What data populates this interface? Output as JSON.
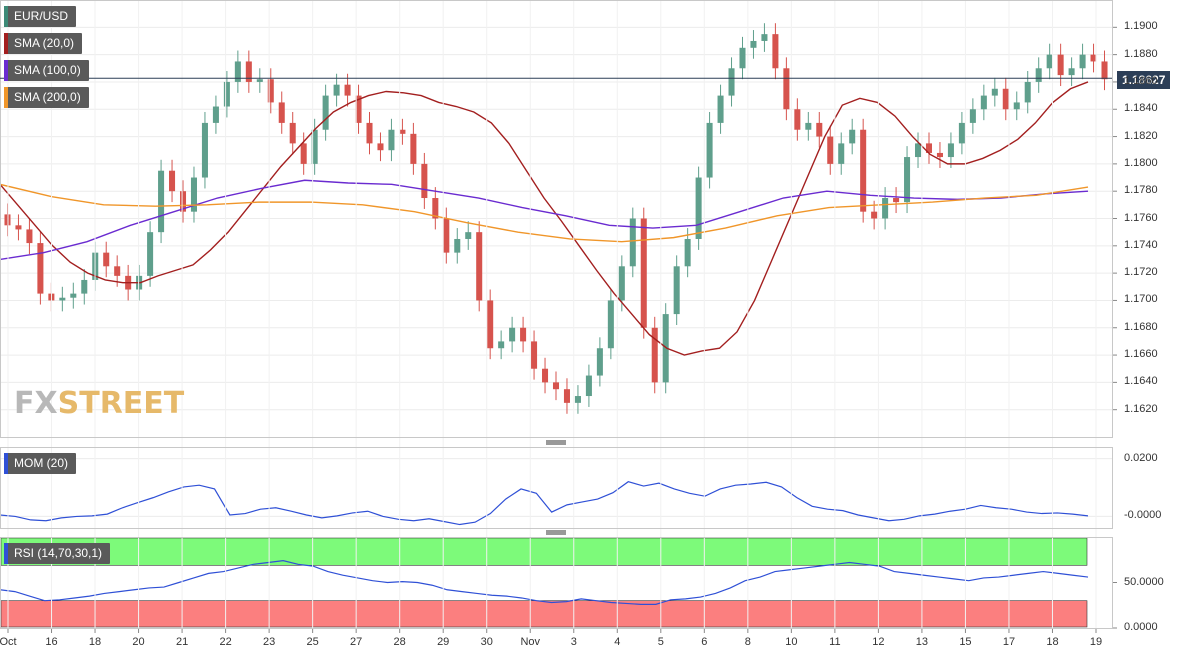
{
  "colors": {
    "up": "#5f9f8c",
    "down": "#d6534d",
    "sma20": "#a31f1f",
    "sma100": "#6a2bd0",
    "sma200": "#f0962a",
    "mom": "#2f50d6",
    "rsi": "#2f50d6"
  },
  "legend": {
    "symbol": "EUR/USD",
    "sma20": "SMA (20,0)",
    "sma100": "SMA (100,0)",
    "sma200": "SMA (200,0)",
    "mom": "MOM (20)",
    "rsi": "RSI (14,70,30,1)"
  },
  "last_price": "1.18627",
  "watermark": {
    "part1": "FX",
    "part2": "STREET"
  },
  "chart_data": [
    {
      "type": "candlestick",
      "title": "EUR/USD",
      "ylim": [
        1.16,
        1.192
      ],
      "y_ticks": [
        "1.1620",
        "1.1640",
        "1.1660",
        "1.1680",
        "1.1700",
        "1.1720",
        "1.1740",
        "1.1760",
        "1.1780",
        "1.1800",
        "1.1820",
        "1.1840",
        "1.1860",
        "1.1880",
        "1.1900"
      ],
      "x_ticks": [
        "Oct",
        "16",
        "18",
        "20",
        "21",
        "22",
        "23",
        "25",
        "27",
        "28",
        "29",
        "30",
        "Nov",
        "3",
        "4",
        "5",
        "6",
        "8",
        "10",
        "11",
        "12",
        "13",
        "15",
        "17",
        "18",
        "19"
      ],
      "last_value": 1.18627,
      "close": [
        1.1755,
        1.1752,
        1.1742,
        1.1705,
        1.17,
        1.1702,
        1.1705,
        1.1715,
        1.1735,
        1.1725,
        1.1718,
        1.1708,
        1.1718,
        1.175,
        1.1795,
        1.178,
        1.1765,
        1.179,
        1.183,
        1.1842,
        1.186,
        1.1875,
        1.186,
        1.1862,
        1.1845,
        1.183,
        1.1815,
        1.18,
        1.1825,
        1.185,
        1.1858,
        1.185,
        1.183,
        1.1815,
        1.181,
        1.1825,
        1.1822,
        1.18,
        1.1775,
        1.176,
        1.1735,
        1.1745,
        1.175,
        1.17,
        1.1665,
        1.167,
        1.168,
        1.167,
        1.165,
        1.164,
        1.1635,
        1.1625,
        1.163,
        1.1645,
        1.1665,
        1.17,
        1.1725,
        1.176,
        1.168,
        1.164,
        1.169,
        1.1725,
        1.1745,
        1.179,
        1.183,
        1.185,
        1.187,
        1.1885,
        1.189,
        1.1895,
        1.187,
        1.184,
        1.1825,
        1.183,
        1.182,
        1.18,
        1.1815,
        1.1825,
        1.1765,
        1.176,
        1.1775,
        1.1772,
        1.1805,
        1.1815,
        1.1808,
        1.1805,
        1.1815,
        1.183,
        1.184,
        1.185,
        1.1855,
        1.184,
        1.1845,
        1.186,
        1.187,
        1.188,
        1.1865,
        1.187,
        1.188,
        1.1875,
        1.1862
      ],
      "series": [
        {
          "name": "SMA (20,0)",
          "values": [
            1.1785,
            1.177,
            1.1755,
            1.174,
            1.1728,
            1.172,
            1.1715,
            1.1713,
            1.1713,
            1.1718,
            1.1722,
            1.1726,
            1.1737,
            1.175,
            1.1766,
            1.1782,
            1.1798,
            1.1812,
            1.1826,
            1.1838,
            1.1845,
            1.185,
            1.1853,
            1.1852,
            1.185,
            1.1845,
            1.1842,
            1.1838,
            1.183,
            1.1815,
            1.1795,
            1.1775,
            1.1758,
            1.174,
            1.1722,
            1.1705,
            1.169,
            1.1675,
            1.1665,
            1.166,
            1.1663,
            1.1665,
            1.1677,
            1.17,
            1.173,
            1.176,
            1.179,
            1.182,
            1.1843,
            1.1848,
            1.1845,
            1.1835,
            1.182,
            1.1807,
            1.18,
            1.18,
            1.1804,
            1.181,
            1.1818,
            1.183,
            1.1845,
            1.1855,
            1.186
          ]
        },
        {
          "name": "SMA (100,0)",
          "values": [
            1.173,
            1.1735,
            1.1743,
            1.1755,
            1.1765,
            1.1775,
            1.1782,
            1.1788,
            1.1786,
            1.1785,
            1.178,
            1.1775,
            1.1768,
            1.1762,
            1.1755,
            1.1753,
            1.1755,
            1.1765,
            1.1775,
            1.178,
            1.1777,
            1.1775,
            1.1774,
            1.1775,
            1.1778,
            1.178
          ]
        },
        {
          "name": "SMA (200,0)",
          "values": [
            1.1785,
            1.1776,
            1.177,
            1.1769,
            1.177,
            1.1772,
            1.1772,
            1.177,
            1.1765,
            1.1757,
            1.175,
            1.1745,
            1.1743,
            1.1746,
            1.1753,
            1.1762,
            1.1768,
            1.177,
            1.1772,
            1.1775,
            1.1777,
            1.1783
          ]
        }
      ]
    },
    {
      "type": "line",
      "title": "MOM (20)",
      "y_ticks": [
        "0.0200",
        "-0.0000"
      ],
      "ylim": [
        -0.004,
        0.024
      ],
      "series": [
        {
          "name": "MOM (20)",
          "values": [
            0.0005,
            0.0,
            -0.0012,
            -0.0015,
            -0.0005,
            0.0,
            0.0002,
            0.0008,
            0.003,
            0.0048,
            0.0065,
            0.0085,
            0.0102,
            0.0108,
            0.0095,
            0.0005,
            0.001,
            0.0025,
            0.003,
            0.0018,
            0.0005,
            -0.0005,
            0.0002,
            0.0012,
            0.0018,
            0.0,
            -0.001,
            -0.0015,
            -0.0008,
            -0.0018,
            -0.0028,
            -0.002,
            0.001,
            0.006,
            0.0095,
            0.008,
            0.0015,
            0.004,
            0.005,
            0.006,
            0.0082,
            0.012,
            0.0105,
            0.0115,
            0.0095,
            0.008,
            0.007,
            0.0095,
            0.0108,
            0.0112,
            0.0118,
            0.0102,
            0.0065,
            0.0035,
            0.0025,
            0.002,
            0.0005,
            -0.0005,
            -0.0015,
            -0.001,
            0.0002,
            0.0008,
            0.0018,
            0.0025,
            0.0038,
            0.003,
            0.0025,
            0.0015,
            0.001,
            0.0012,
            0.0008,
            0.0002
          ]
        }
      ]
    },
    {
      "type": "line",
      "title": "RSI (14,70,30,1)",
      "y_ticks": [
        "50.0000",
        "0.0000"
      ],
      "ylim": [
        0,
        100
      ],
      "bands": {
        "overbought": 70,
        "oversold": 30
      },
      "series": [
        {
          "name": "RSI (14,70,30,1)",
          "values": [
            42,
            40,
            35,
            30,
            31,
            33,
            35,
            38,
            40,
            42,
            44,
            45,
            50,
            55,
            60,
            62,
            66,
            70,
            72,
            74,
            70,
            68,
            62,
            58,
            55,
            52,
            50,
            51,
            50,
            47,
            42,
            40,
            38,
            36,
            35,
            33,
            30,
            28,
            29,
            32,
            30,
            28,
            27,
            26,
            26,
            31,
            32,
            34,
            38,
            44,
            52,
            56,
            62,
            64,
            66,
            68,
            70,
            72,
            70,
            68,
            62,
            60,
            58,
            56,
            54,
            52,
            55,
            56,
            58,
            60,
            62,
            60,
            58,
            56
          ]
        }
      ]
    }
  ]
}
